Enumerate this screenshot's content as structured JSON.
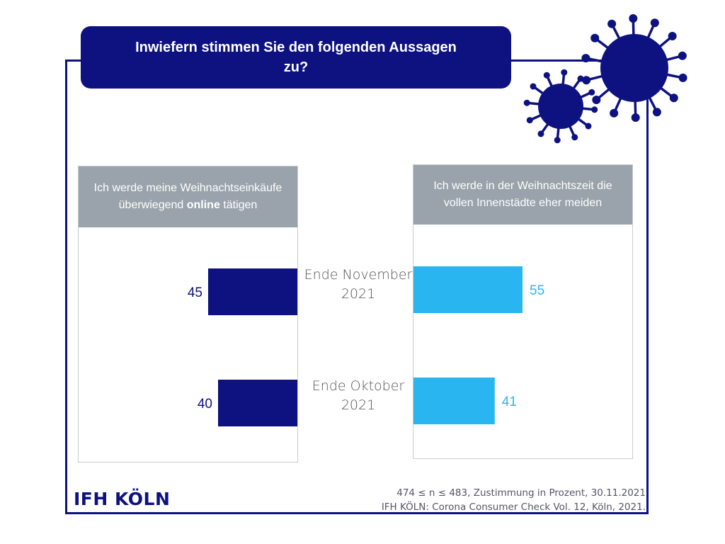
{
  "title": "Inwiefern stimmen Sie den folgenden Aussagen zu?",
  "brand": {
    "logo": "IFH KÖLN",
    "color_dark": "#0d1280",
    "color_light": "#29b6f0",
    "header_gray": "#9aa3ab"
  },
  "source": {
    "line1": "474 ≤ n ≤ 483, Zustimmung in Prozent, 30.11.2021",
    "line2": "IFH KÖLN: Corona Consumer Check Vol. 12, Köln, 2021."
  },
  "chart_data": {
    "type": "bar",
    "orientation": "horizontal",
    "categories": [
      "Ende November 2021",
      "Ende Oktober 2021"
    ],
    "series": [
      {
        "name": "Ich werde meine Weihnachtseinkäufe überwiegend online tätigen",
        "name_parts": [
          "Ich werde meine Weihnachtseinkäufe überwiegend ",
          "online",
          " tätigen"
        ],
        "values": [
          45,
          40
        ],
        "color": "#0d1280"
      },
      {
        "name": "Ich werde in der Weihnachtszeit die vollen Innenstädte eher meiden",
        "values": [
          55,
          41
        ],
        "color": "#29b6f0"
      }
    ]
  }
}
